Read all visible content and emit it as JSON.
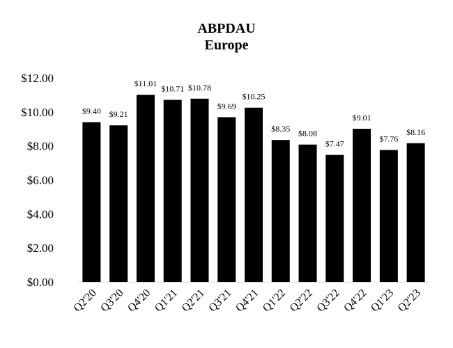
{
  "chart_data": {
    "type": "bar",
    "title": "ABPDAU",
    "subtitle": "Europe",
    "xlabel": "",
    "ylabel": "",
    "categories": [
      "Q2'20",
      "Q3'20",
      "Q4'20",
      "Q1'21",
      "Q2'21",
      "Q3'21",
      "Q4'21",
      "Q1'22",
      "Q2'22",
      "Q3'22",
      "Q4'22",
      "Q1'23",
      "Q2'23"
    ],
    "values": [
      9.4,
      9.21,
      11.01,
      10.71,
      10.78,
      9.69,
      10.25,
      8.35,
      8.08,
      7.47,
      9.01,
      7.76,
      8.16
    ],
    "data_labels": [
      "$9.40",
      "$9.21",
      "$11.01",
      "$10.71",
      "$10.78",
      "$9.69",
      "$10.25",
      "$8.35",
      "$8.08",
      "$7.47",
      "$9.01",
      "$7.76",
      "$8.16"
    ],
    "ylim": [
      0,
      12
    ],
    "yticks": [
      0,
      2,
      4,
      6,
      8,
      10,
      12
    ],
    "ytick_labels": [
      "$0.00",
      "$2.00",
      "$4.00",
      "$6.00",
      "$8.00",
      "$10.00",
      "$12.00"
    ],
    "grid": false,
    "legend": "none",
    "bar_color": "#000000",
    "baseline_color": "#d9d9d9"
  }
}
